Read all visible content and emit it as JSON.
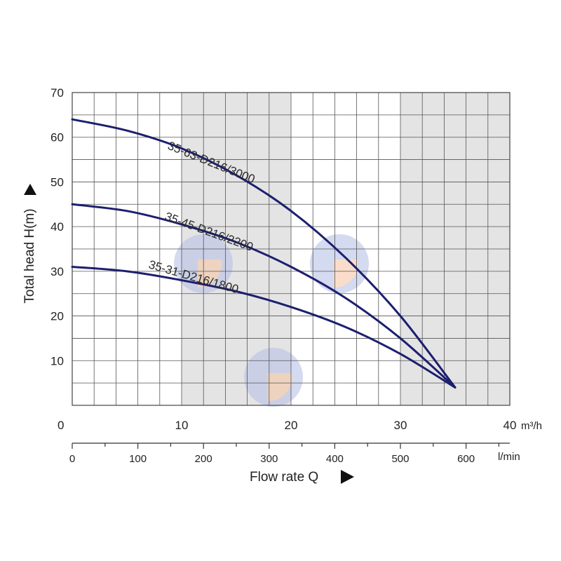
{
  "chart_data": {
    "type": "line",
    "title": "",
    "xlabel": "Flow rate Q",
    "ylabel": "Total head H(m)",
    "x_unit_top": "m³/h",
    "x_unit_bottom": "l/min",
    "xlim": [
      0,
      40
    ],
    "ylim": [
      0,
      70
    ],
    "x_ticks": [
      0,
      10,
      20,
      30,
      40
    ],
    "y_ticks": [
      10,
      20,
      30,
      40,
      50,
      60,
      70
    ],
    "y_zero_label": "0",
    "x2_ticks": [
      0,
      100,
      200,
      300,
      400,
      500,
      600
    ],
    "x2_factor": 16.6667,
    "grid": true,
    "shaded_bands": [
      [
        10,
        20
      ],
      [
        30,
        40
      ]
    ],
    "series": [
      {
        "name": "35-63-D216/3000",
        "x": [
          0,
          5,
          10,
          15,
          20,
          25,
          30,
          35
        ],
        "y": [
          64,
          61.5,
          57.5,
          51.5,
          43.5,
          33,
          20,
          4
        ]
      },
      {
        "name": "35-45-D216/2200",
        "x": [
          0,
          5,
          10,
          15,
          20,
          25,
          30,
          35
        ],
        "y": [
          45,
          43.5,
          40.5,
          36.5,
          31,
          24,
          15,
          4
        ]
      },
      {
        "name": "35-31-D216/1800",
        "x": [
          0,
          5,
          10,
          15,
          20,
          25,
          30,
          35
        ],
        "y": [
          31,
          30,
          28,
          25.5,
          22,
          17.5,
          11.5,
          4
        ]
      }
    ]
  },
  "colors": {
    "curve": "#1c1f6e",
    "grid": "#555555",
    "band": "#e4e4e4",
    "watermark_blue": "#b9c2e6",
    "watermark_orange": "#f6c8a8"
  }
}
